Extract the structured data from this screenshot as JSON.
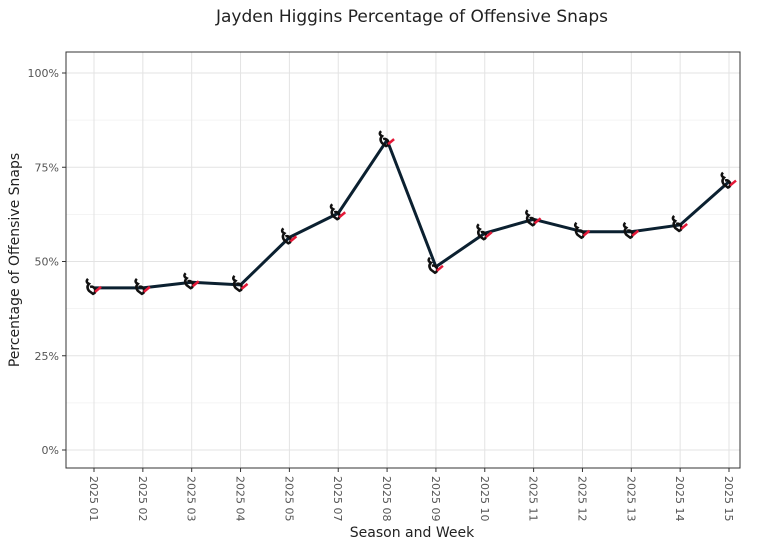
{
  "chart_data": {
    "type": "line",
    "title": "Jayden Higgins Percentage of Offensive Snaps",
    "xlabel": "Season and Week",
    "ylabel": "Percentage of Offensive Snaps",
    "categories": [
      "2025 01",
      "2025 02",
      "2025 03",
      "2025 04",
      "2025 05",
      "2025 07",
      "2025 08",
      "2025 09",
      "2025 10",
      "2025 11",
      "2025 12",
      "2025 13",
      "2025 14",
      "2025 15"
    ],
    "series": [
      {
        "name": "Jayden Higgins",
        "values": [
          43.0,
          43.0,
          44.5,
          43.8,
          56.4,
          62.8,
          82.2,
          48.6,
          57.5,
          61.2,
          57.9,
          57.9,
          59.7,
          71.2
        ]
      }
    ],
    "ylim": [
      0,
      100
    ],
    "yticks": [
      0,
      25,
      50,
      75,
      100
    ],
    "ytick_labels": [
      "0%",
      "25%",
      "50%",
      "75%",
      "100%"
    ],
    "grid": true,
    "legend": "none",
    "colors": {
      "line": "#0b2030",
      "marker_accent": "#e31837"
    },
    "marker_icon": "texans-logo-icon"
  }
}
